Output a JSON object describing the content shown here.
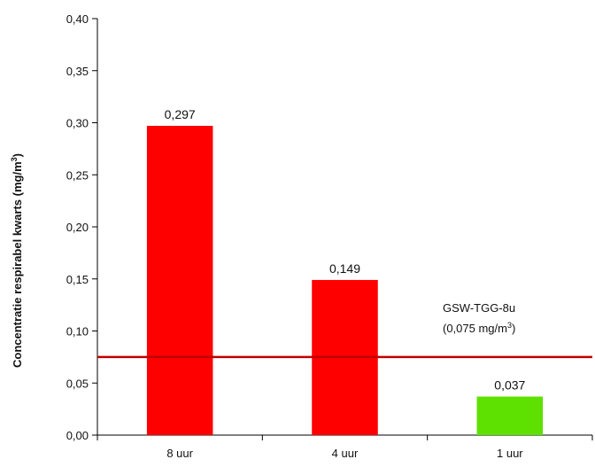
{
  "chart_data": {
    "type": "bar",
    "categories": [
      "8 uur",
      "4 uur",
      "1 uur"
    ],
    "values": [
      0.297,
      0.149,
      0.037
    ],
    "data_labels": [
      "0,297",
      "0,149",
      "0,037"
    ],
    "bar_colors": [
      "#ff0000",
      "#ff0000",
      "#5ee000"
    ],
    "title": "",
    "xlabel": "",
    "ylabel_main": "Concentratie respirabel kwarts (mg/m",
    "ylabel_sup": "3",
    "ylabel_end": ")",
    "ylim": [
      0,
      0.4
    ],
    "yticks": [
      0,
      0.05,
      0.1,
      0.15,
      0.2,
      0.25,
      0.3,
      0.35,
      0.4
    ],
    "ytick_labels": [
      "0,00",
      "0,05",
      "0,10",
      "0,15",
      "0,20",
      "0,25",
      "0,30",
      "0,35",
      "0,40"
    ],
    "grid": false,
    "reference_line": {
      "value": 0.075,
      "color": "#c00000",
      "label_line1": "GSW-TGG-8u",
      "label_line2_main": "(0,075 mg/m",
      "label_line2_sup": "3",
      "label_line2_end": ")"
    }
  }
}
